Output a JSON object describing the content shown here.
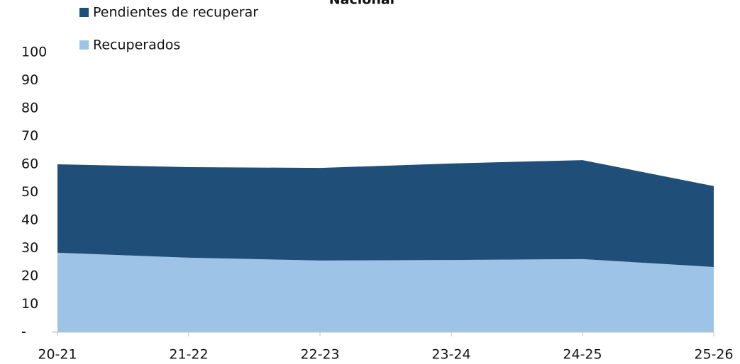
{
  "chart_data": {
    "type": "stacked_area",
    "title": "Nacional",
    "categories": [
      "20-21",
      "21-22",
      "22-23",
      "23-24",
      "24-25",
      "25-26"
    ],
    "series": [
      {
        "name": "Pendientes de recuperar",
        "color": "#1f4e79",
        "values": [
          31.6,
          32.4,
          33.1,
          34.5,
          35.4,
          28.9
        ]
      },
      {
        "name": "Recuperados",
        "color": "#9dc3e6",
        "values": [
          28.4,
          26.6,
          25.6,
          25.8,
          26.1,
          23.3
        ]
      }
    ],
    "ylim": [
      0,
      100
    ],
    "yticks": [
      {
        "value": 0,
        "label": "-"
      },
      10,
      20,
      30,
      40,
      50,
      60,
      70,
      80,
      90,
      100
    ],
    "grid": false
  }
}
